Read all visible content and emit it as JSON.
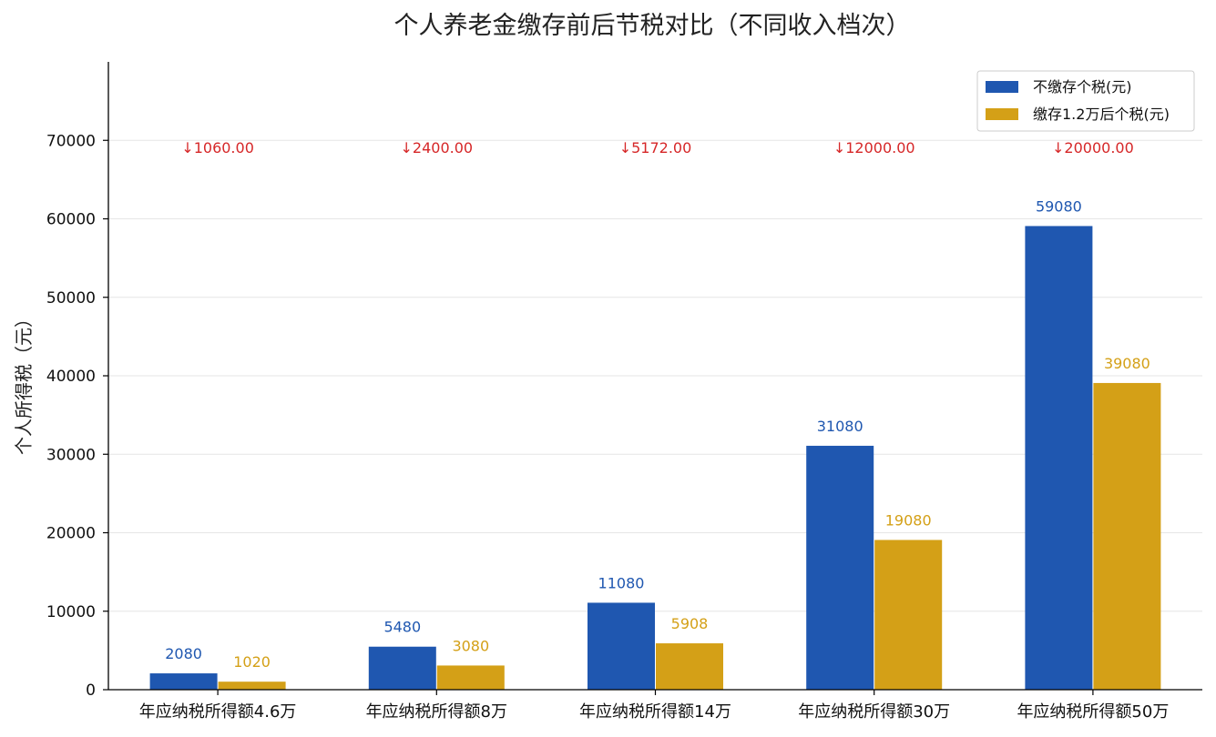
{
  "chart_data": {
    "type": "bar",
    "title": "个人养老金缴存前后节税对比（不同收入档次）",
    "xlabel": "",
    "ylabel": "个人所得税（元）",
    "categories": [
      "年应纳税所得额4.6万",
      "年应纳税所得额8万",
      "年应纳税所得额14万",
      "年应纳税所得额30万",
      "年应纳税所得额50万"
    ],
    "series": [
      {
        "name": "不缴存个税(元)",
        "color": "#1f57b0",
        "values": [
          2080,
          5480,
          11080,
          31080,
          59080
        ],
        "labels": [
          "2080",
          "5480",
          "11080",
          "31080",
          "59080"
        ]
      },
      {
        "name": "缴存1.2万后个税(元)",
        "color": "#d4a017",
        "values": [
          1020,
          3080,
          5908,
          19080,
          39080
        ],
        "labels": [
          "1020",
          "3080",
          "5908",
          "19080",
          "39080"
        ]
      }
    ],
    "annotations": [
      "↓1060.00",
      "↓2400.00",
      "↓5172.00",
      "↓12000.00",
      "↓20000.00"
    ],
    "yticks": [
      "0",
      "10000",
      "20000",
      "30000",
      "40000",
      "50000",
      "60000",
      "70000"
    ],
    "ylim": [
      0,
      80000
    ],
    "grid": true,
    "legend_position": "top-right"
  }
}
